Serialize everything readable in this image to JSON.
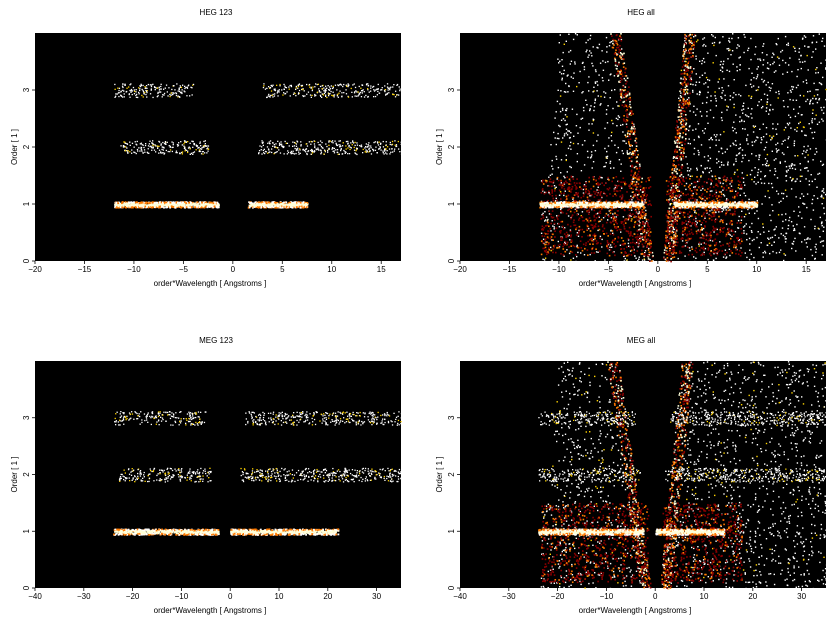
{
  "colors": {
    "background": "#000000",
    "low": "#8b0000",
    "mid": "#ff7a00",
    "high": "#ffffd8",
    "white": "#ffffff"
  },
  "chart_data": [
    {
      "type": "heatmap",
      "title": "HEG 123",
      "xlabel": "order*Wavelength [ Angstroms ]",
      "ylabel": "Order [ 1 ]",
      "xlim": [
        -20,
        17
      ],
      "ylim": [
        0,
        4
      ],
      "xticks": [
        -20,
        -15,
        -10,
        -5,
        0,
        5,
        10,
        15
      ],
      "yticks": [
        0,
        1,
        2,
        3
      ],
      "bands": [
        {
          "y": 1,
          "xmin": -12,
          "xmax": 7.5,
          "gap": [
            -1.5,
            1.5
          ],
          "intensity": 1.0
        },
        {
          "y": 2,
          "xmin": -11.5,
          "xmax": 17,
          "gap": [
            -2.5,
            2.5
          ],
          "intensity": 0.35
        },
        {
          "y": 3,
          "xmin": -12,
          "xmax": 17,
          "gap": [
            -4,
            3
          ],
          "intensity": 0.3
        }
      ],
      "wedges": false
    },
    {
      "type": "heatmap",
      "title": "HEG all",
      "xlabel": "order*Wavelength [ Angstroms ]",
      "ylabel": "Order [ 1 ]",
      "xlim": [
        -20,
        17
      ],
      "ylim": [
        0,
        4
      ],
      "xticks": [
        -20,
        -15,
        -10,
        -5,
        0,
        5,
        10,
        15
      ],
      "yticks": [
        0,
        1,
        2,
        3
      ],
      "bands": [
        {
          "y": 1,
          "xmin": -12,
          "xmax": 10,
          "gap": [
            -1.5,
            1.5
          ],
          "intensity": 1.0
        }
      ],
      "wedges": true
    },
    {
      "type": "heatmap",
      "title": "MEG 123",
      "xlabel": "order*Wavelength [ Angstroms ]",
      "ylabel": "Order [ 1 ]",
      "xlim": [
        -40,
        35
      ],
      "ylim": [
        0,
        4
      ],
      "xticks": [
        -40,
        -30,
        -20,
        -10,
        0,
        10,
        20,
        30
      ],
      "yticks": [
        0,
        1,
        2,
        3
      ],
      "bands": [
        {
          "y": 1,
          "xmin": -24,
          "xmax": 22,
          "gap": [
            -2.5,
            0
          ],
          "intensity": 1.0
        },
        {
          "y": 2,
          "xmin": -23,
          "xmax": 35,
          "gap": [
            -4,
            2
          ],
          "intensity": 0.35
        },
        {
          "y": 3,
          "xmin": -24,
          "xmax": 35,
          "gap": [
            -5,
            3
          ],
          "intensity": 0.3
        }
      ],
      "wedges": false
    },
    {
      "type": "heatmap",
      "title": "MEG all",
      "xlabel": "order*Wavelength [ Angstroms ]",
      "ylabel": "Order [ 1 ]",
      "xlim": [
        -40,
        35
      ],
      "ylim": [
        0,
        4
      ],
      "xticks": [
        -40,
        -30,
        -20,
        -10,
        0,
        10,
        20,
        30
      ],
      "yticks": [
        0,
        1,
        2,
        3
      ],
      "bands": [
        {
          "y": 1,
          "xmin": -24,
          "xmax": 14,
          "gap": [
            -2.5,
            0
          ],
          "intensity": 1.0
        },
        {
          "y": 2,
          "xmin": -24,
          "xmax": 35,
          "gap": [
            -3,
            2
          ],
          "intensity": 0.3
        },
        {
          "y": 3,
          "xmin": -24,
          "xmax": 35,
          "gap": [
            -4,
            3
          ],
          "intensity": 0.3
        }
      ],
      "wedges": true
    }
  ]
}
